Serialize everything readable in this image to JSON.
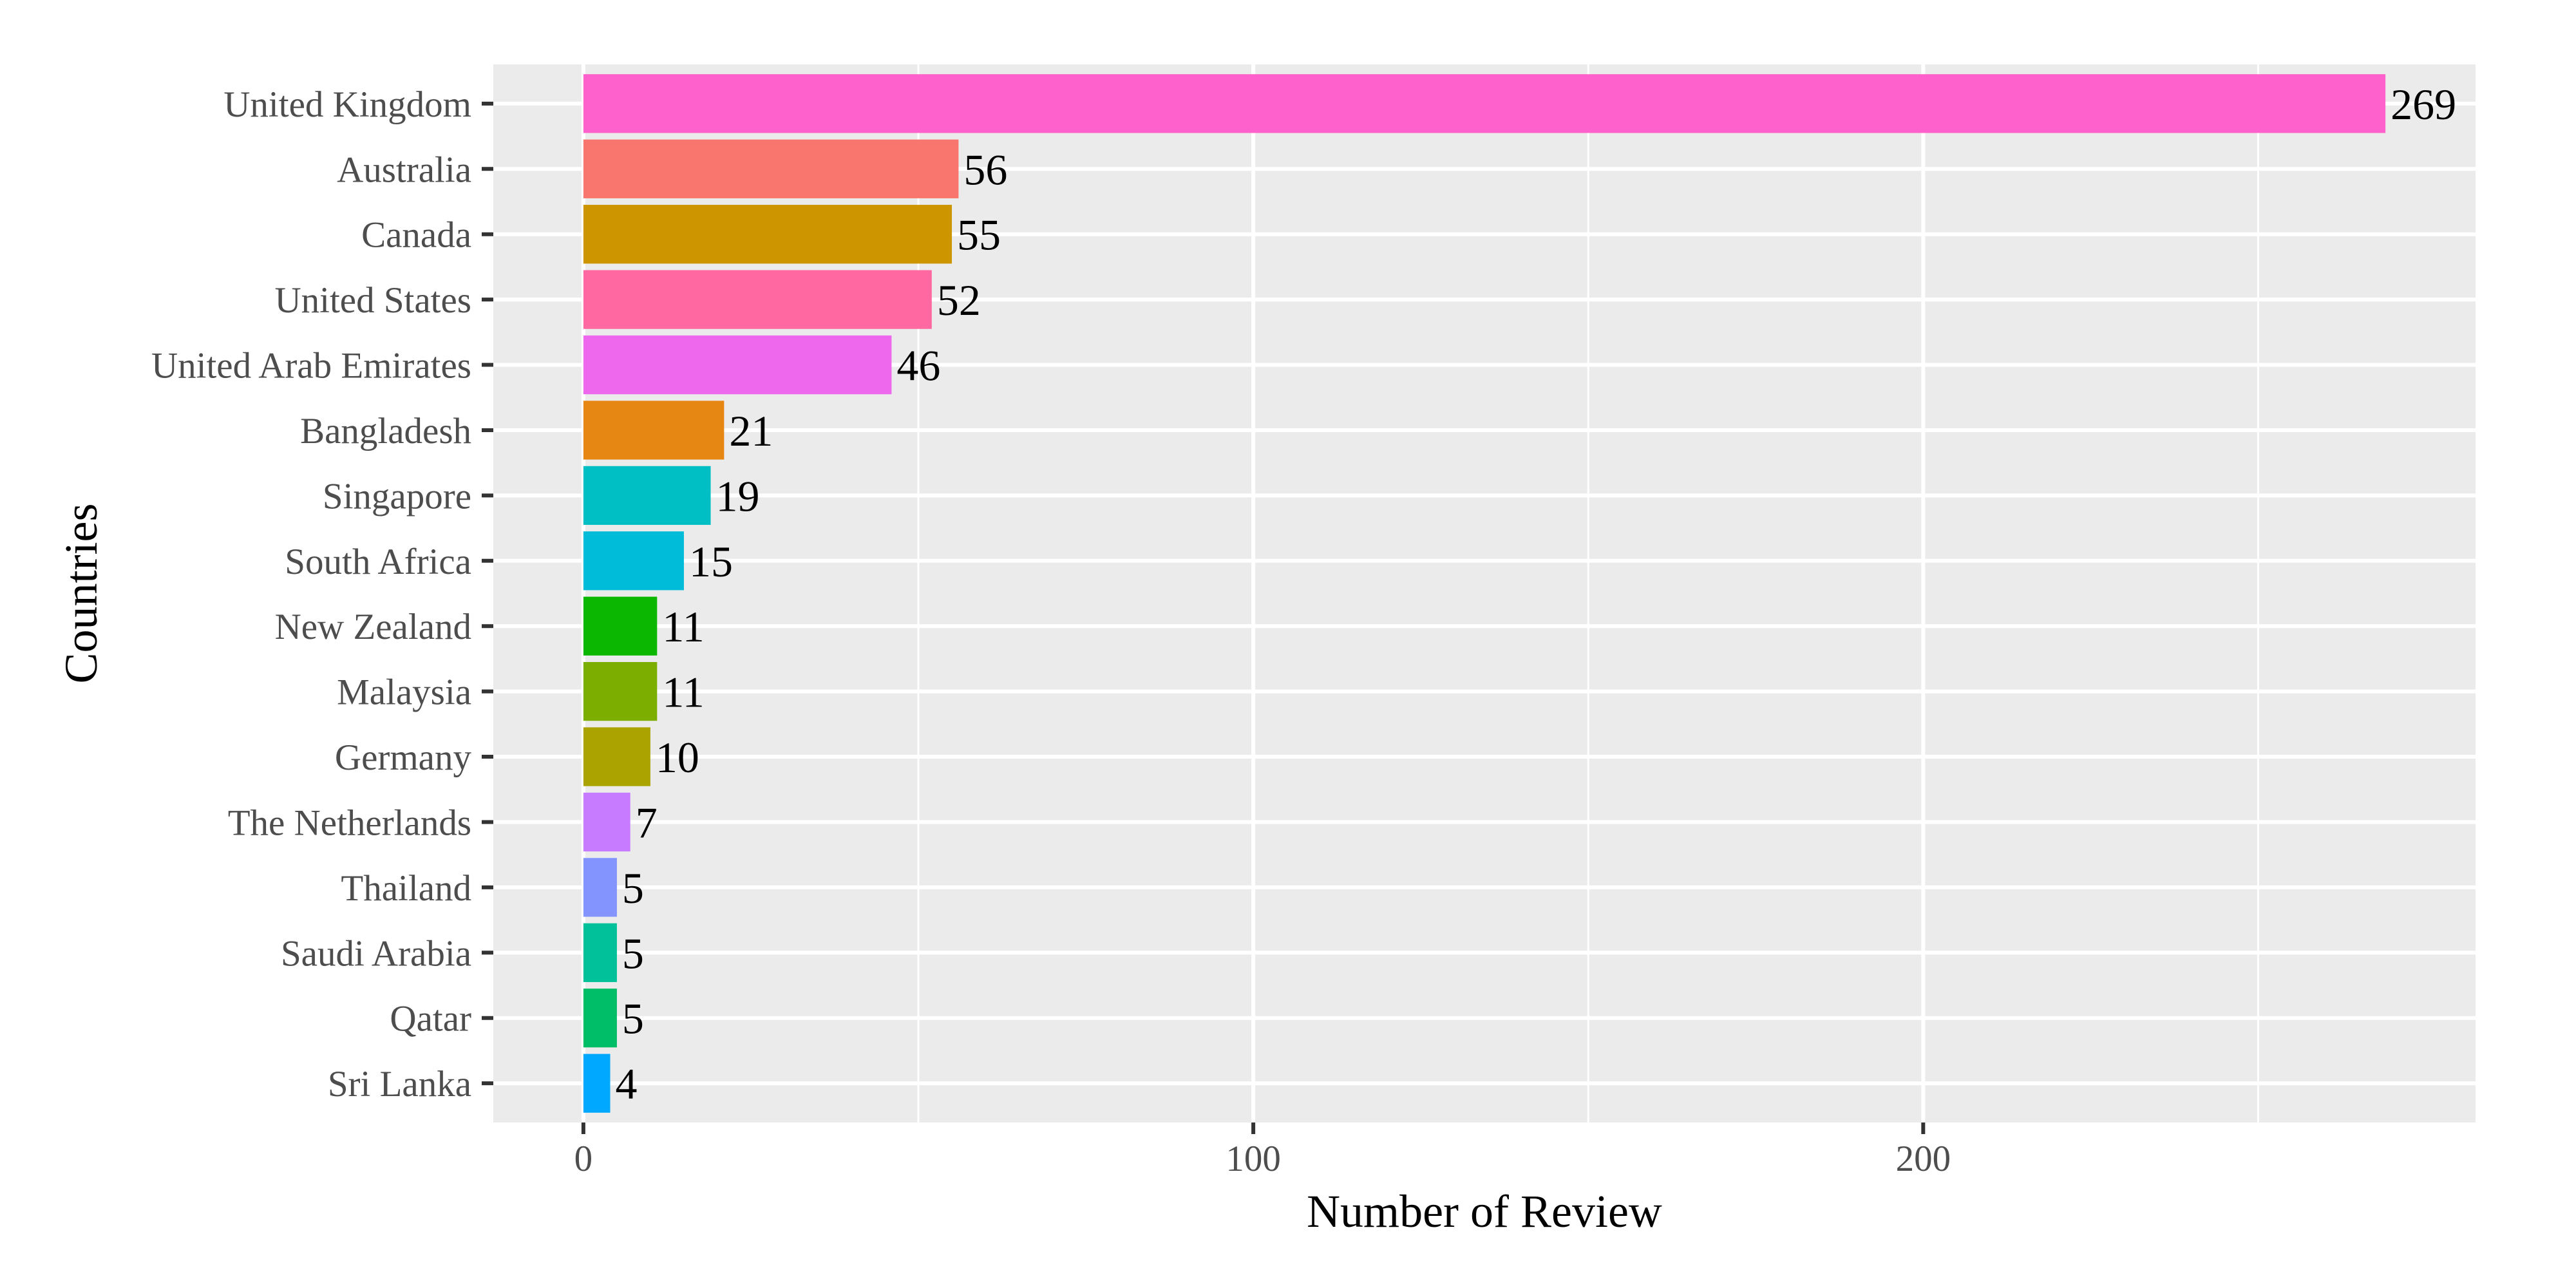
{
  "chart_data": {
    "type": "bar",
    "orientation": "horizontal",
    "xlabel": "Number of Review",
    "ylabel": "Countries",
    "xlim": [
      -13.45,
      282.45
    ],
    "x_ticks": [
      0,
      100,
      200
    ],
    "grid": true,
    "legend": "none",
    "panel_background": "#EBEBEB",
    "grid_color": "#FFFFFF",
    "categories": [
      "United Kingdom",
      "Australia",
      "Canada",
      "United States",
      "United Arab Emirates",
      "Bangladesh",
      "Singapore",
      "South Africa",
      "New Zealand",
      "Malaysia",
      "Germany",
      "The Netherlands",
      "Thailand",
      "Saudi Arabia",
      "Qatar",
      "Sri Lanka"
    ],
    "values": [
      269,
      56,
      55,
      52,
      46,
      21,
      19,
      15,
      11,
      11,
      10,
      7,
      5,
      5,
      5,
      4
    ],
    "colors": [
      "#FF61CC",
      "#F8766D",
      "#CD9600",
      "#FF68A1",
      "#ED68ED",
      "#E68613",
      "#00BFC4",
      "#00BCD8",
      "#0CB702",
      "#7CAE00",
      "#ABA300",
      "#C77CFF",
      "#8494FF",
      "#00C19A",
      "#00BE67",
      "#00A9FF"
    ],
    "data_labels": [
      "269",
      "56",
      "55",
      "52",
      "46",
      "21",
      "19",
      "15",
      "11",
      "11",
      "10",
      "7",
      "5",
      "5",
      "5",
      "4"
    ],
    "x_tick_labels": [
      "0",
      "100",
      "200"
    ]
  }
}
